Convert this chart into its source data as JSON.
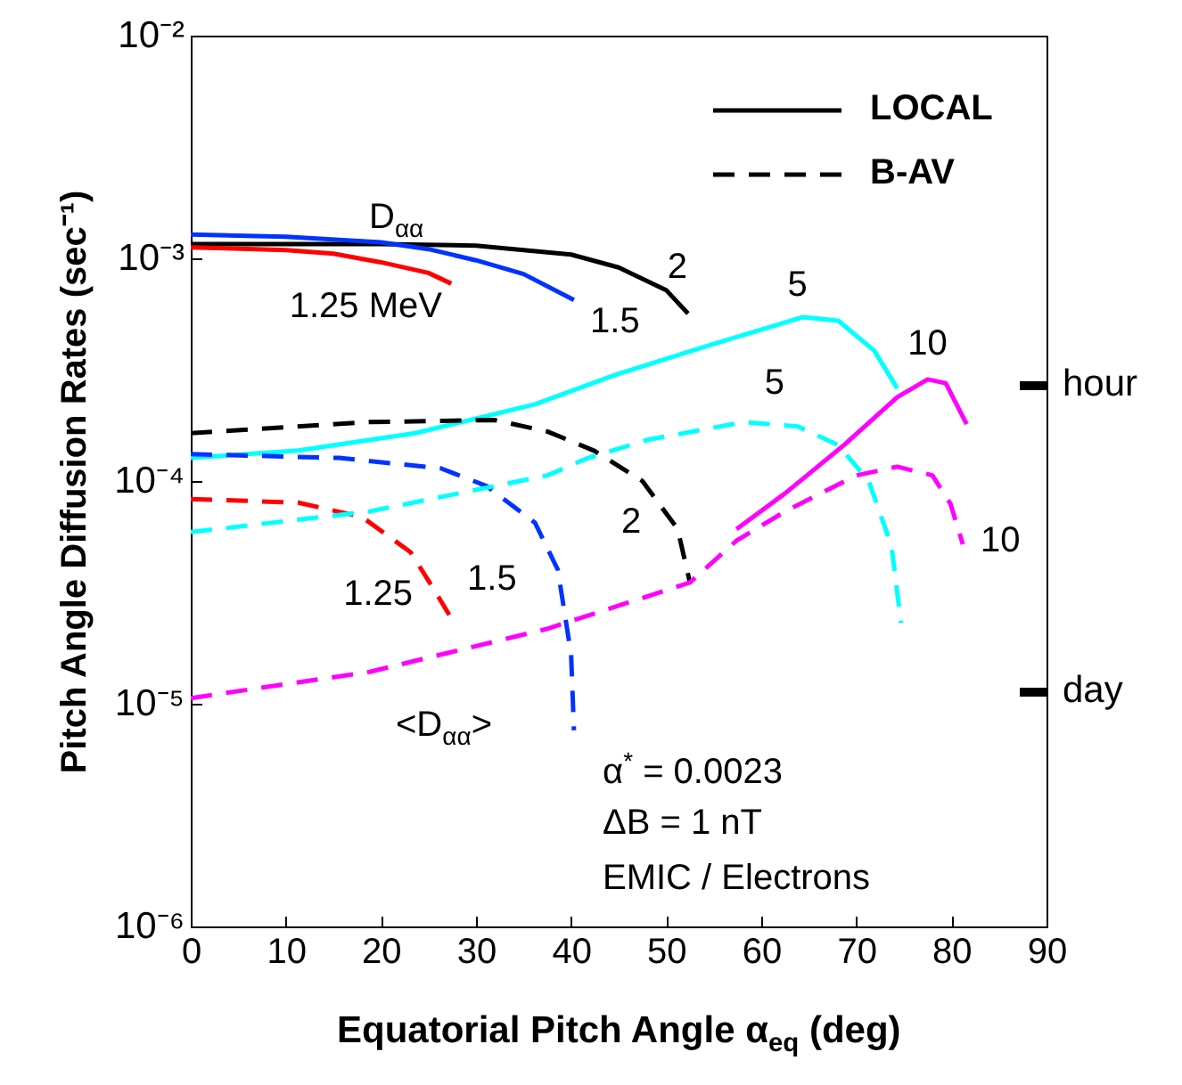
{
  "chart_data": {
    "type": "line",
    "xlabel": "Equatorial Pitch Angle α$_{eq}$ (deg)",
    "ylabel": "Pitch Angle Diffusion Rates (sec⁻¹)",
    "xlim": [
      0,
      90
    ],
    "xticks": [
      0,
      10,
      20,
      30,
      40,
      50,
      60,
      70,
      80,
      90
    ],
    "log": "y",
    "ylim": [
      1e-06,
      0.01
    ],
    "yticks": [
      {
        "value": 0.01,
        "label": "10⁻²"
      },
      {
        "value": 0.001,
        "label": "10⁻³"
      },
      {
        "value": 0.0001,
        "label": "10⁻⁴"
      },
      {
        "value": 1e-05,
        "label": "10⁻⁵"
      },
      {
        "value": 1e-06,
        "label": "10⁻⁶"
      }
    ],
    "series": [
      {
        "name": "2",
        "color": "#000000",
        "line_style": "solid",
        "x": [
          0,
          10,
          20,
          30,
          40,
          45,
          50,
          52.3
        ],
        "values": [
          0.00116,
          0.00116,
          0.00116,
          0.00114,
          0.00104,
          0.00091,
          0.00072,
          0.000565
        ]
      },
      {
        "name": "1.5",
        "color": "#0033ff",
        "line_style": "solid",
        "x": [
          0,
          10,
          20,
          25,
          30,
          35,
          40.3
        ],
        "values": [
          0.00128,
          0.00125,
          0.00118,
          0.0011,
          0.00098,
          0.00085,
          0.00065
        ]
      },
      {
        "name": "1.25 MeV",
        "color": "#ff0000",
        "line_style": "solid",
        "x": [
          0,
          10,
          15,
          20,
          25,
          27.4
        ],
        "values": [
          0.00112,
          0.00109,
          0.00105,
          0.00096,
          0.00086,
          0.00077
        ]
      },
      {
        "name": "5",
        "color": "#00ffff",
        "line_style": "solid",
        "x": [
          0,
          11.3,
          23.6,
          36.2,
          44.7,
          55,
          64.4,
          68.1,
          71.9,
          74.3
        ],
        "values": [
          0.000127,
          0.000137,
          0.000164,
          0.000221,
          0.0003,
          0.000413,
          0.000545,
          0.000525,
          0.000384,
          0.000261
        ]
      },
      {
        "name": "10",
        "color": "#ff00ff",
        "line_style": "solid",
        "x": [
          57.4,
          62.5,
          68.7,
          74.3,
          77.5,
          79.4,
          81.6
        ],
        "values": [
          6.08e-05,
          8.8e-05,
          0.000145,
          0.000238,
          0.000286,
          0.000275,
          0.00018
        ]
      },
      {
        "name": "2",
        "color": "#000000",
        "line_style": "dashed",
        "x": [
          0,
          18.8,
          31.9,
          37.5,
          42.4,
          47.5,
          51.2,
          52.5
        ],
        "values": [
          0.000164,
          0.000184,
          0.000188,
          0.000167,
          0.000137,
          0.0001,
          6.1e-05,
          3.5e-05
        ]
      },
      {
        "name": "1.5",
        "color": "#0033ff",
        "line_style": "dashed",
        "x": [
          0,
          15.6,
          26.3,
          31.1,
          36.2,
          38.6,
          40,
          40.3
        ],
        "values": [
          0.000132,
          0.000127,
          0.000114,
          9.5e-05,
          6.5e-05,
          4e-05,
          1.67e-05,
          7.6e-06
        ]
      },
      {
        "name": "1.25",
        "color": "#ff0000",
        "line_style": "dashed",
        "x": [
          0,
          11.3,
          18,
          23.1,
          25.5,
          27.2
        ],
        "values": [
          8.3e-05,
          8e-05,
          6.9e-05,
          4.8e-05,
          3.3e-05,
          2.5e-05
        ]
      },
      {
        "name": "5",
        "color": "#00ffff",
        "line_style": "dashed",
        "x": [
          0,
          18.8,
          37.5,
          41.8,
          48,
          58.2,
          63.8,
          68.1,
          71.3,
          73.7,
          74.7
        ],
        "values": [
          5.9e-05,
          7.3e-05,
          0.000106,
          0.000127,
          0.000153,
          0.000184,
          0.000176,
          0.000145,
          0.0001,
          5.1e-05,
          2.3e-05
        ]
      },
      {
        "name": "10",
        "color": "#ff00ff",
        "line_style": "dashed",
        "x": [
          0,
          18.8,
          37.5,
          52.5,
          57.4,
          62.5,
          70,
          74.3,
          78,
          79.9,
          81.2
        ],
        "values": [
          1.06e-05,
          1.39e-05,
          2.17e-05,
          3.5e-05,
          5.4e-05,
          7.3e-05,
          0.000106,
          0.000116,
          0.000106,
          7.9e-05,
          5.2e-05
        ]
      }
    ],
    "annotations": [
      "D$_{αα}$",
      "<D$_{αα}$>",
      "α$^{*}$ = 0.0023",
      "ΔB = 1 nT",
      "EMIC / Electrons",
      "LOCAL",
      "B-AV",
      "hour",
      "day"
    ]
  }
}
